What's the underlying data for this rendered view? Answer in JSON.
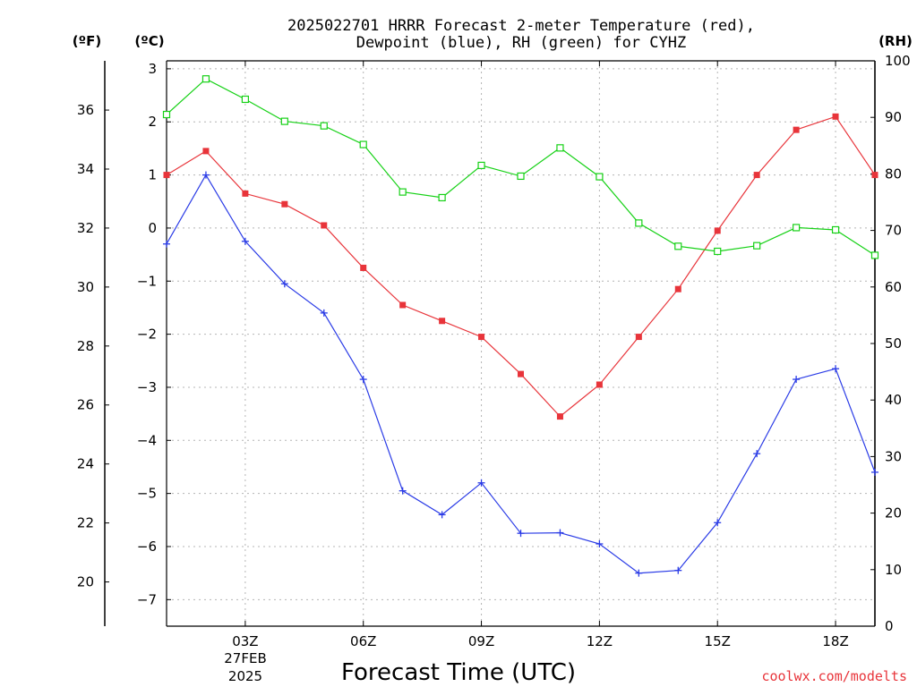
{
  "chart_data": {
    "type": "line",
    "title_lines": [
      "2025022701 HRRR Forecast 2-meter Temperature (red),",
      "Dewpoint (blue), RH (green) for CYHZ"
    ],
    "xlabel": "Forecast Time (UTC)",
    "x_ticks": [
      "03Z",
      "06Z",
      "09Z",
      "12Z",
      "15Z",
      "18Z"
    ],
    "x_tick_hours": [
      3,
      6,
      9,
      12,
      15,
      18
    ],
    "date_label": [
      "27FEB",
      "2025"
    ],
    "xlim": [
      1,
      19
    ],
    "left_axis_f": {
      "unit": "(ºF)",
      "ticks": [
        20,
        22,
        24,
        26,
        28,
        30,
        32,
        34,
        36
      ]
    },
    "left_axis_c": {
      "unit": "(ºC)",
      "ticks": [
        -7,
        -6,
        -5,
        -4,
        -3,
        -2,
        -1,
        0,
        1,
        2,
        3
      ],
      "ylim": [
        -7.5,
        3.15
      ]
    },
    "right_axis_rh": {
      "unit": "(RH)",
      "ticks": [
        0,
        10,
        20,
        30,
        40,
        50,
        60,
        70,
        80,
        90,
        100
      ],
      "ylim": [
        0,
        100
      ]
    },
    "x": [
      1,
      2,
      3,
      4,
      5,
      6,
      7,
      8,
      9,
      10,
      11,
      12,
      13,
      14,
      15,
      16,
      17,
      18,
      19
    ],
    "series": [
      {
        "color": "#e8343a",
        "marker": "filled-square",
        "axis": "C",
        "values": [
          1.0,
          1.45,
          0.65,
          0.45,
          0.05,
          -0.75,
          -1.45,
          -1.75,
          -2.05,
          -2.75,
          -3.55,
          -2.95,
          -2.05,
          -1.15,
          -0.05,
          1.0,
          1.85,
          2.1,
          1.0
        ]
      },
      {
        "color": "#2a3be6",
        "marker": "plus",
        "axis": "C",
        "values": [
          -0.3,
          1.0,
          -0.25,
          -1.05,
          -1.6,
          -2.85,
          -4.95,
          -5.4,
          -4.8,
          -5.75,
          -5.74,
          -5.95,
          -6.5,
          -6.45,
          -5.55,
          -4.25,
          -2.85,
          -2.65,
          -4.6
        ]
      },
      {
        "color": "#16d116",
        "marker": "open-square",
        "axis": "RH",
        "values": [
          90.5,
          96.8,
          93.2,
          89.3,
          88.5,
          85.2,
          76.8,
          75.8,
          81.5,
          79.6,
          84.6,
          79.5,
          71.3,
          67.2,
          66.3,
          67.3,
          70.5,
          70.1,
          65.6
        ]
      }
    ],
    "grid": true,
    "credit": "coolwx.com/modelts"
  }
}
